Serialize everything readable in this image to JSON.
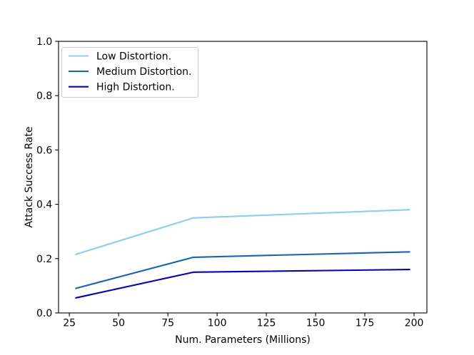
{
  "chart_data": {
    "type": "line",
    "title": "",
    "xlabel": "Num. Parameters (Millions)",
    "ylabel": "Attack Success Rate",
    "x": [
      28,
      88,
      198
    ],
    "series": [
      {
        "name": "Low Distortion.",
        "color": "#87CEFA",
        "values": [
          0.215,
          0.35,
          0.38
        ]
      },
      {
        "name": "Medium Distortion.",
        "color": "#1565C0",
        "values": [
          0.09,
          0.205,
          0.225
        ]
      },
      {
        "name": "High Distortion.",
        "color": "#0000CD",
        "values": [
          0.055,
          0.15,
          0.16
        ]
      }
    ],
    "xlim": [
      19.5,
      206.5
    ],
    "ylim": [
      0.0,
      1.0
    ],
    "xticks": [
      25,
      50,
      75,
      100,
      125,
      150,
      175,
      200
    ],
    "yticks": [
      0.0,
      0.2,
      0.4,
      0.6,
      0.8,
      1.0
    ],
    "ytick_decimals": 1,
    "grid": false,
    "legend_position": "upper-left",
    "axis_color": "#000000",
    "legend_border_color": "#cccccc",
    "legend_background": "#ffffff"
  }
}
